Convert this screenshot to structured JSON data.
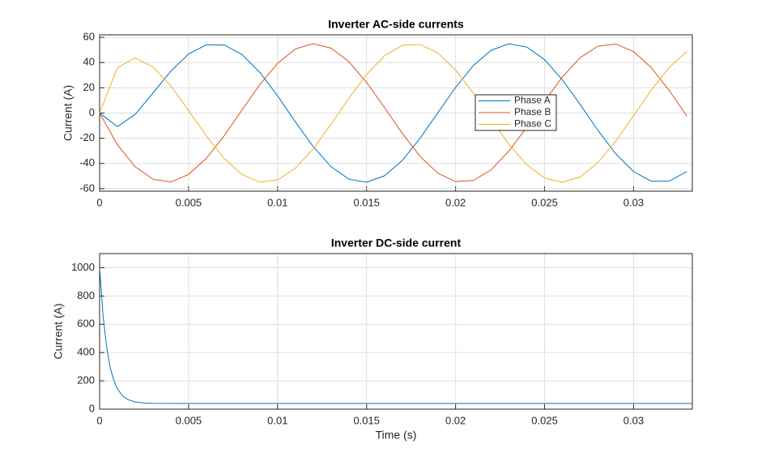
{
  "chart_data": [
    {
      "type": "line",
      "title": "Inverter AC-side currents",
      "ylabel": "Current (A)",
      "x": [
        0,
        0.001,
        0.002,
        0.003,
        0.004,
        0.005,
        0.006,
        0.007,
        0.008,
        0.009,
        0.01,
        0.011,
        0.012,
        0.013,
        0.014,
        0.015,
        0.016,
        0.017,
        0.018,
        0.019,
        0.02,
        0.021,
        0.022,
        0.023,
        0.024,
        0.025,
        0.026,
        0.027,
        0.028,
        0.029,
        0.03,
        0.031,
        0.032,
        0.033
      ],
      "series": [
        {
          "name": "Phase A",
          "color": "#0072BD",
          "values": [
            0,
            -10.8,
            -1.1,
            15.9,
            33.2,
            46.8,
            54.1,
            54.0,
            46.4,
            32.3,
            13.6,
            -7.0,
            -26.6,
            -42.5,
            -52.4,
            -54.9,
            -49.8,
            -37.7,
            -20.1,
            0.1,
            20.3,
            37.7,
            49.8,
            54.9,
            52.3,
            42.3,
            26.3,
            6.8,
            -13.8,
            -32.4,
            -46.5,
            -54.1,
            -54.0,
            -46.4
          ]
        },
        {
          "name": "Phase B",
          "color": "#D95319",
          "values": [
            0,
            -25.1,
            -42.6,
            -52.5,
            -54.7,
            -48.7,
            -35.9,
            -18.0,
            2.4,
            22.5,
            39.4,
            50.8,
            55.0,
            51.5,
            40.8,
            24.3,
            4.5,
            -16.0,
            -34.3,
            -47.7,
            -54.4,
            -53.5,
            -45.0,
            -30.1,
            -11.3,
            9.3,
            28.6,
            43.9,
            53.0,
            54.7,
            48.7,
            35.9,
            17.9,
            -2.5
          ]
        },
        {
          "name": "Phase C",
          "color": "#EDB120",
          "values": [
            0,
            35.9,
            43.7,
            36.6,
            21.5,
            1.9,
            -18.2,
            -36.0,
            -48.8,
            -54.8,
            -53.0,
            -43.8,
            -28.4,
            -9.0,
            11.6,
            30.6,
            45.3,
            53.7,
            54.4,
            47.6,
            34.1,
            15.8,
            -4.8,
            -24.8,
            -41.0,
            -51.6,
            -54.9,
            -50.7,
            -39.2,
            -22.3,
            -2.2,
            18.2,
            36.1,
            48.9
          ]
        }
      ],
      "xlim": [
        0,
        0.0333
      ],
      "ylim": [
        -62,
        62
      ],
      "xticks": [
        0,
        0.005,
        0.01,
        0.015,
        0.02,
        0.025,
        0.03
      ],
      "yticks": [
        -60,
        -40,
        -20,
        0,
        20,
        40,
        60
      ],
      "grid": true,
      "legend": true
    },
    {
      "type": "line",
      "title": "Inverter DC-side current",
      "ylabel": "Current (A)",
      "xlabel": "Time (s)",
      "x": [
        0,
        0.0002,
        0.0004,
        0.0006,
        0.0008,
        0.001,
        0.0013,
        0.0016,
        0.002,
        0.0025,
        0.003,
        0.005,
        0.01,
        0.015,
        0.02,
        0.025,
        0.03,
        0.0333
      ],
      "series": [
        {
          "color": "#0072BD",
          "values": [
            1000,
            655,
            435,
            293,
            202,
            144,
            93,
            67,
            51,
            44,
            41,
            40,
            40,
            40,
            40,
            40,
            40,
            40
          ]
        }
      ],
      "xlim": [
        0,
        0.0333
      ],
      "ylim": [
        0,
        1100
      ],
      "xticks": [
        0,
        0.005,
        0.01,
        0.015,
        0.02,
        0.025,
        0.03
      ],
      "yticks": [
        0,
        200,
        400,
        600,
        800,
        1000
      ],
      "grid": true
    }
  ]
}
